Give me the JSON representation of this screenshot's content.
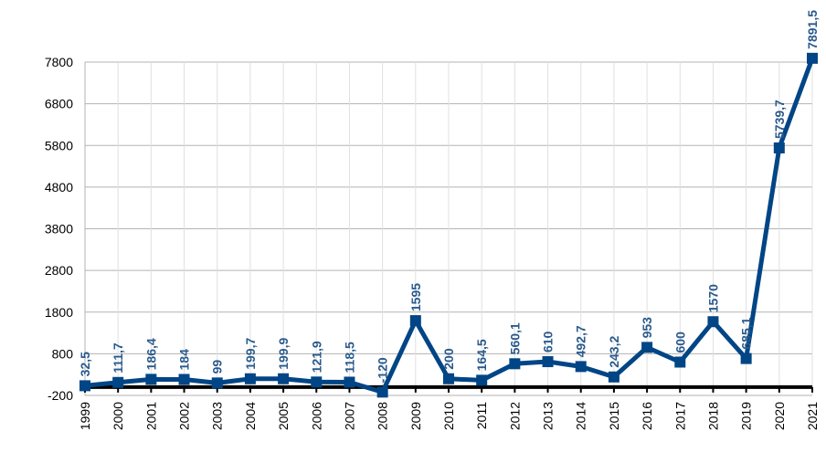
{
  "chart_data": {
    "type": "line",
    "title": "",
    "xlabel": "",
    "ylabel": "",
    "categories": [
      "1999",
      "2000",
      "2001",
      "2002",
      "2003",
      "2004",
      "2005",
      "2006",
      "2007",
      "2008",
      "2009",
      "2010",
      "2011",
      "2012",
      "2013",
      "2014",
      "2015",
      "2016",
      "2017",
      "2018",
      "2019",
      "2020",
      "2021"
    ],
    "series": [
      {
        "values": [
          32.5,
          111.7,
          186.4,
          184,
          99,
          199.7,
          199.9,
          121.9,
          118.5,
          -120,
          1595,
          200,
          164.5,
          560.1,
          610,
          492.7,
          243.2,
          953,
          600,
          1570,
          685.1,
          5739.7,
          7891.5
        ],
        "data_labels": [
          "32,5",
          "111,7",
          "186,4",
          "184",
          "99",
          "199,7",
          "199,9",
          "121,9",
          "118,5",
          "-120",
          "1595",
          "200",
          "164,5",
          "560,1",
          "610",
          "492,7",
          "243,2",
          "953",
          "600",
          "1570",
          "685,1",
          "5739,7",
          "7891,5"
        ]
      }
    ],
    "yticks": [
      -200,
      800,
      1800,
      2800,
      3800,
      4800,
      5800,
      6800,
      7800
    ],
    "ylim": [
      -200,
      7800
    ],
    "grid": true,
    "legend": "none",
    "colors": {
      "line": "#004586",
      "label": "#2a5a8c",
      "grid": "#b3b3b3",
      "zero_line": "#000000"
    }
  }
}
